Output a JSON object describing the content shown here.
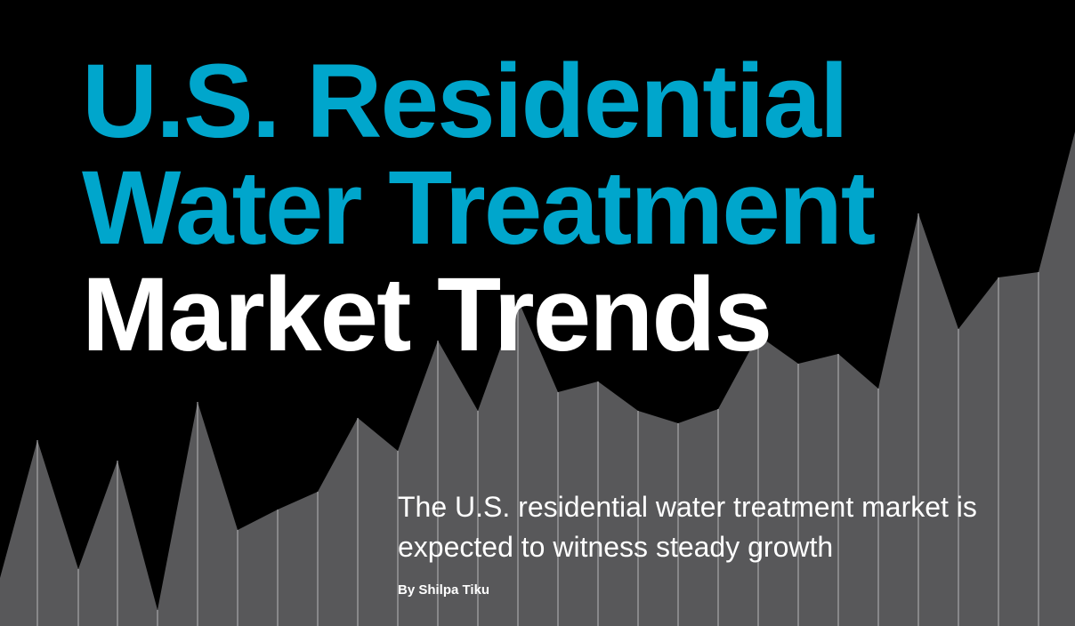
{
  "article": {
    "title_lines": [
      "U.S. Residential",
      "Water Treatment",
      "Market Trends"
    ],
    "subtitle": "The U.S. residential water treatment market is expected to witness steady growth",
    "byline": "By Shilpa Tiku"
  },
  "colors": {
    "background": "#000000",
    "title_accent": "#00a6cc",
    "title_white": "#ffffff",
    "chart_fill": "#58585a",
    "chart_gridline": "#a7a7a9"
  }
}
